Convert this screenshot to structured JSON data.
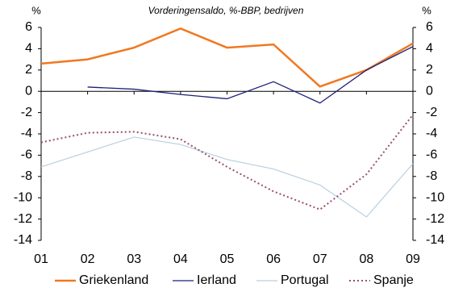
{
  "chart_data": {
    "type": "line",
    "title": "Vorderingensaldo, %-BBP, bedrijven",
    "ylabel": "%",
    "y2label": "%",
    "categories": [
      "01",
      "02",
      "03",
      "04",
      "05",
      "06",
      "07",
      "08",
      "09"
    ],
    "series": [
      {
        "name": "Griekenland",
        "color": "#f07820",
        "width": 2.5,
        "dash": "solid",
        "values": [
          2.6,
          3.0,
          4.1,
          5.9,
          4.1,
          4.4,
          0.45,
          2.0,
          4.5
        ]
      },
      {
        "name": "Ierland",
        "color": "#1f1f7a",
        "width": 1.3,
        "dash": "solid",
        "values": [
          null,
          0.4,
          0.2,
          -0.3,
          -0.7,
          0.9,
          -1.1,
          2.0,
          4.2
        ]
      },
      {
        "name": "Portugal",
        "color": "#b8cfe0",
        "width": 1.2,
        "dash": "solid",
        "values": [
          -7.1,
          -5.7,
          -4.3,
          -5.0,
          -6.4,
          -7.3,
          -8.8,
          -11.8,
          -6.8
        ]
      },
      {
        "name": "Spanje",
        "color": "#9a4f6a",
        "width": 2,
        "dash": "dotted",
        "values": [
          -4.8,
          -3.9,
          -3.8,
          -4.5,
          -7.1,
          -9.4,
          -11.1,
          -7.8,
          -2.2
        ]
      }
    ],
    "ylim": [
      -14,
      6
    ],
    "yticks": [
      -14,
      -12,
      -10,
      -8,
      -6,
      -4,
      -2,
      0,
      2,
      4,
      6
    ],
    "y2lim": [
      -14,
      6
    ],
    "y2ticks": [
      -14,
      -12,
      -10,
      -8,
      -6,
      -4,
      -2,
      0,
      2,
      4,
      6
    ],
    "grid": false,
    "legend": "bottom"
  }
}
